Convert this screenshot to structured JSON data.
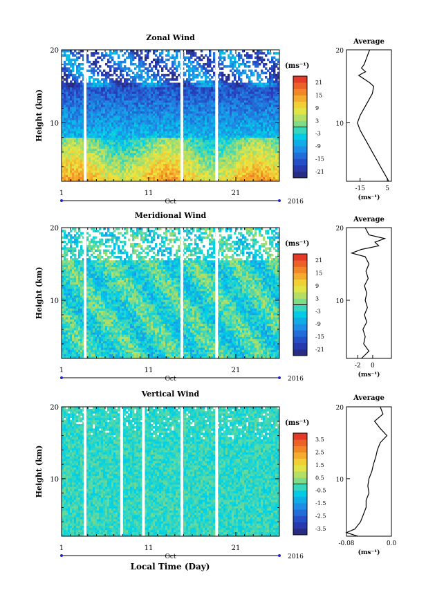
{
  "figure": {
    "xlabel": "Local Time (Day)",
    "month_label": "Oct",
    "year_label": "2016",
    "avg_title": "Average",
    "unit_label": "(ms⁻¹)"
  },
  "chart_data": [
    {
      "type": "heatmap",
      "title": "Zonal Wind",
      "ylabel": "Height (km)",
      "xlim": [
        1,
        26
      ],
      "ylim": [
        2,
        20
      ],
      "x_ticks": [
        "1",
        "11",
        "21"
      ],
      "y_ticks": [
        "10",
        "20"
      ],
      "colorbar": {
        "unit": "(ms⁻¹)",
        "min": -24,
        "max": 24,
        "tick_labels": [
          "21",
          "15",
          "9",
          "3",
          "-3",
          "-9",
          "-15",
          "-21"
        ],
        "tick_values": [
          21,
          15,
          9,
          3,
          -3,
          -9,
          -15,
          -21
        ]
      },
      "gaps_day": [
        3.7,
        14.8,
        18.8
      ],
      "average_profile": {
        "xlim": [
          -25,
          8
        ],
        "x_ticks": [
          "-15",
          "5"
        ],
        "x_tick_values": [
          -15,
          5
        ],
        "xlabel": "(ms⁻¹)",
        "heights": [
          2,
          3,
          4,
          5,
          6,
          7,
          8,
          9,
          10,
          11,
          12,
          13,
          14,
          15,
          15.5,
          16,
          16.5,
          17,
          17.5,
          18,
          19,
          20
        ],
        "values": [
          6,
          3,
          0,
          -3,
          -6,
          -9,
          -12,
          -15,
          -17,
          -15,
          -12,
          -9,
          -6,
          -5,
          -8,
          -12,
          -16,
          -11,
          -14,
          -12,
          -10,
          -8
        ]
      }
    },
    {
      "type": "heatmap",
      "title": "Meridional Wind",
      "ylabel": "Height (km)",
      "xlim": [
        1,
        26
      ],
      "ylim": [
        2,
        20
      ],
      "x_ticks": [
        "1",
        "11",
        "21"
      ],
      "y_ticks": [
        "10",
        "20"
      ],
      "colorbar": {
        "unit": "(ms⁻¹)",
        "min": -24,
        "max": 24,
        "tick_labels": [
          "21",
          "15",
          "9",
          "3",
          "-3",
          "-9",
          "-15",
          "-21"
        ],
        "tick_values": [
          21,
          15,
          9,
          3,
          -3,
          -9,
          -15,
          -21
        ]
      },
      "gaps_day": [
        3.7,
        14.8,
        18.8
      ],
      "average_profile": {
        "xlim": [
          -3.5,
          2.5
        ],
        "x_ticks": [
          "-2",
          "0"
        ],
        "x_tick_values": [
          -2,
          0
        ],
        "xlabel": "(ms⁻¹)",
        "heights": [
          2,
          3,
          4,
          5,
          6,
          7,
          8,
          9,
          10,
          11,
          12,
          13,
          14,
          15,
          16,
          16.5,
          17,
          17.5,
          18,
          18.5,
          19,
          20
        ],
        "values": [
          -1.5,
          -0.5,
          -1.2,
          -1,
          -1.3,
          -0.8,
          -1.1,
          -0.7,
          -1,
          -0.8,
          -1.1,
          -0.6,
          -0.9,
          -0.5,
          -1,
          -2.8,
          -1.5,
          0.8,
          0.3,
          1.6,
          -0.5,
          -1.0
        ]
      }
    },
    {
      "type": "heatmap",
      "title": "Vertical Wind",
      "ylabel": "Height (km)",
      "xlim": [
        1,
        26
      ],
      "ylim": [
        2,
        20
      ],
      "x_ticks": [
        "1",
        "11",
        "21"
      ],
      "y_ticks": [
        "10",
        "20"
      ],
      "colorbar": {
        "unit": "(ms⁻¹)",
        "min": -4,
        "max": 4,
        "tick_labels": [
          "3.5",
          "2.5",
          "1.5",
          "0.5",
          "-0.5",
          "-1.5",
          "-2.5",
          "-3.5"
        ],
        "tick_values": [
          3.5,
          2.5,
          1.5,
          0.5,
          -0.5,
          -1.5,
          -2.5,
          -3.5
        ]
      },
      "gaps_day": [
        3.7,
        7.9,
        10.4,
        14.8,
        18.8
      ],
      "average_profile": {
        "xlim": [
          -0.08,
          0.0
        ],
        "x_ticks": [
          "-0.08",
          "0.0"
        ],
        "x_tick_values": [
          -0.08,
          0.0
        ],
        "xlabel": "(ms⁻¹)",
        "heights": [
          2,
          2.5,
          3,
          4,
          5,
          6,
          7,
          8,
          9,
          10,
          11,
          12,
          13,
          14,
          15,
          16,
          17,
          18,
          19,
          20
        ],
        "values": [
          -0.06,
          -0.08,
          -0.065,
          -0.055,
          -0.05,
          -0.045,
          -0.045,
          -0.04,
          -0.042,
          -0.04,
          -0.035,
          -0.032,
          -0.028,
          -0.025,
          -0.02,
          -0.008,
          -0.02,
          -0.03,
          -0.015,
          -0.02
        ]
      }
    }
  ]
}
